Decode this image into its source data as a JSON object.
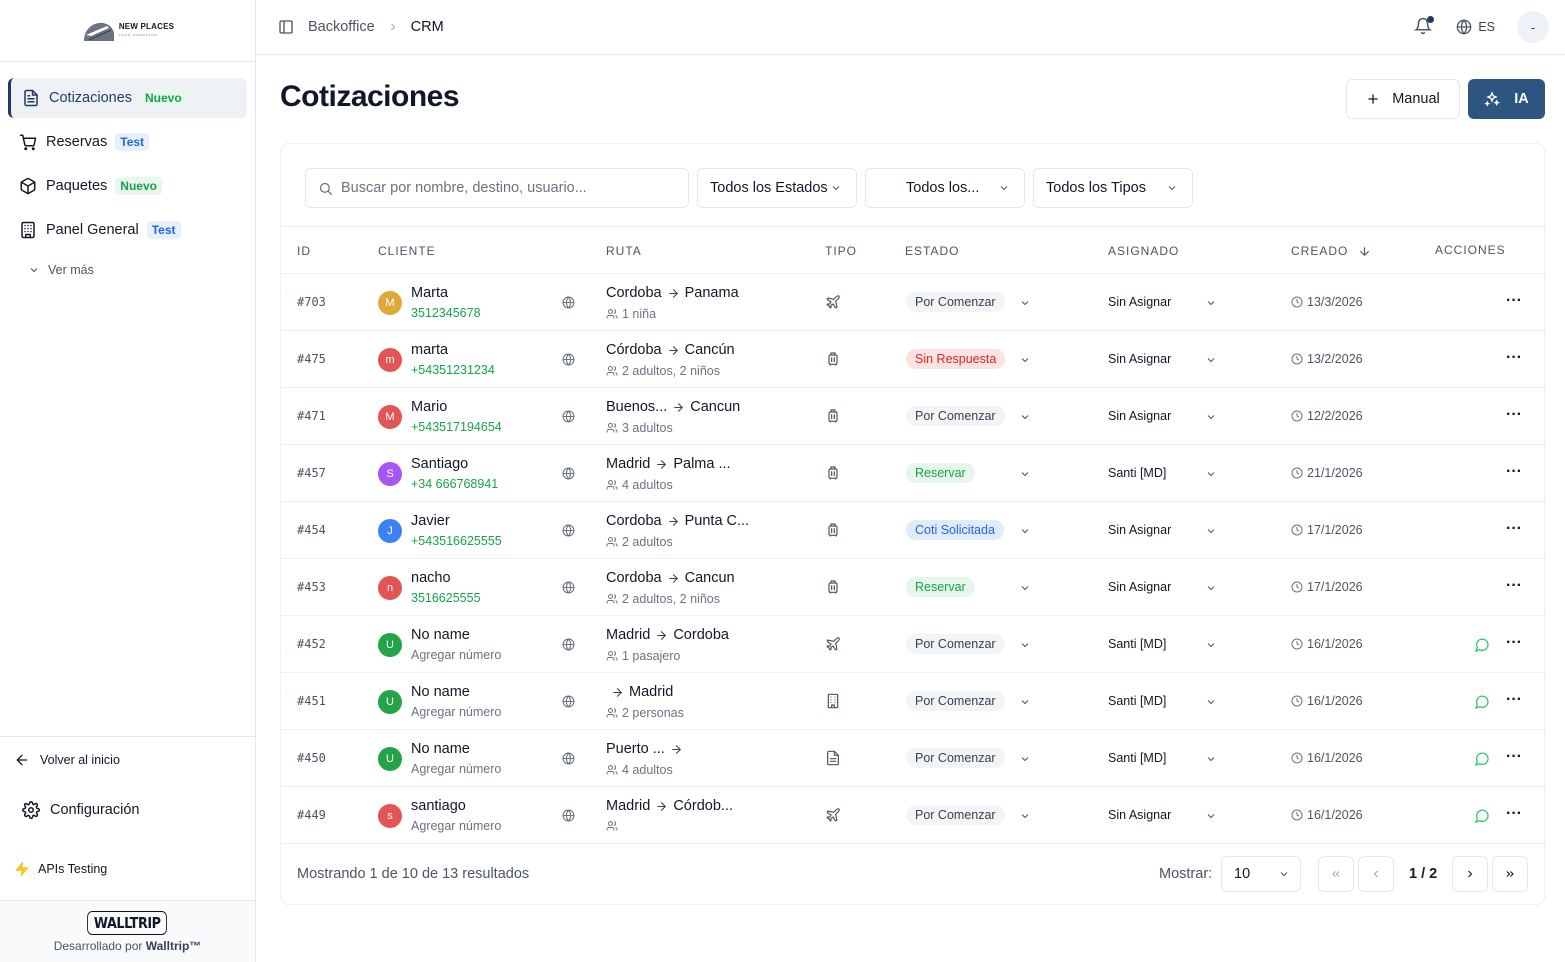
{
  "brand": {
    "name": "NEW PLACES",
    "tagline": "TOUR OPERATOR"
  },
  "sidebar": {
    "items": [
      {
        "label": "Cotizaciones",
        "badge": "Nuevo",
        "icon": "document-icon"
      },
      {
        "label": "Reservas",
        "badge": "Test",
        "icon": "cart-icon"
      },
      {
        "label": "Paquetes",
        "badge": "Nuevo",
        "icon": "package-icon"
      },
      {
        "label": "Panel General",
        "badge": "Test",
        "icon": "building-icon"
      }
    ],
    "ver_mas": "Ver más",
    "volver": "Volver al inicio",
    "config": "Configuración",
    "apis": "APIs Testing",
    "walltrip_logo": "WALLTRIP",
    "dev_prefix": "Desarrollado por ",
    "dev_name": "Walltrip™"
  },
  "header": {
    "crumb1": "Backoffice",
    "crumb2": "CRM",
    "lang": "ES",
    "avatar": "-"
  },
  "page": {
    "title": "Cotizaciones",
    "btn_manual": "Manual",
    "btn_ia": "IA"
  },
  "filters": {
    "search_placeholder": "Buscar por nombre, destino, usuario...",
    "estados": "Todos los Estados",
    "todos": "Todos los...",
    "tipos": "Todos los Tipos"
  },
  "table": {
    "headers": {
      "id": "ID",
      "cliente": "CLIENTE",
      "ruta": "RUTA",
      "tipo": "TIPO",
      "estado": "ESTADO",
      "asignado": "ASIGNADO",
      "creado": "CREADO",
      "acciones": "ACCIONES"
    },
    "rows": [
      {
        "id": "#703",
        "initial": "M",
        "color": "#e0a83a",
        "name": "Marta",
        "phone": "3512345678",
        "phone_green": true,
        "from": "Cordoba",
        "to": "Panama",
        "pax": "1 niña",
        "tipo": "plane",
        "estado": "Por Comenzar",
        "st": "gray",
        "asignado": "Sin Asignar",
        "fecha": "13/3/2026",
        "chat": false
      },
      {
        "id": "#475",
        "initial": "m",
        "color": "#e25555",
        "name": "marta",
        "phone": "+54351231234",
        "phone_green": true,
        "from": "Córdoba",
        "to": "Cancún",
        "pax": "2 adultos, 2 niños",
        "tipo": "luggage",
        "estado": "Sin Respuesta",
        "st": "red",
        "asignado": "Sin Asignar",
        "fecha": "13/2/2026",
        "chat": false
      },
      {
        "id": "#471",
        "initial": "M",
        "color": "#e25555",
        "name": "Mario",
        "phone": "+543517194654",
        "phone_green": true,
        "from": "Buenos...",
        "to": "Cancun",
        "pax": "3 adultos",
        "tipo": "luggage",
        "estado": "Por Comenzar",
        "st": "gray",
        "asignado": "Sin Asignar",
        "fecha": "12/2/2026",
        "chat": false
      },
      {
        "id": "#457",
        "initial": "S",
        "color": "#a855f7",
        "name": "Santiago",
        "phone": "+34 666768941",
        "phone_green": true,
        "from": "Madrid",
        "to": "Palma ...",
        "pax": "4 adultos",
        "tipo": "luggage",
        "estado": "Reservar",
        "st": "green",
        "asignado": "Santi [MD]",
        "fecha": "21/1/2026",
        "chat": false
      },
      {
        "id": "#454",
        "initial": "J",
        "color": "#3b82f6",
        "name": "Javier",
        "phone": "+543516625555",
        "phone_green": true,
        "from": "Cordoba",
        "to": "Punta C...",
        "pax": "2 adultos",
        "tipo": "luggage",
        "estado": "Coti Solicitada",
        "st": "blue",
        "asignado": "Sin Asignar",
        "fecha": "17/1/2026",
        "chat": false
      },
      {
        "id": "#453",
        "initial": "n",
        "color": "#e25555",
        "name": "nacho",
        "phone": "3516625555",
        "phone_green": true,
        "from": "Cordoba",
        "to": "Cancun",
        "pax": "2 adultos, 2 niños",
        "tipo": "luggage",
        "estado": "Reservar",
        "st": "green",
        "asignado": "Sin Asignar",
        "fecha": "17/1/2026",
        "chat": false
      },
      {
        "id": "#452",
        "initial": "U",
        "color": "#22a447",
        "name": "No name",
        "phone": "Agregar número",
        "phone_green": false,
        "from": "Madrid",
        "to": "Cordoba",
        "pax": "1 pasajero",
        "tipo": "plane",
        "estado": "Por Comenzar",
        "st": "gray",
        "asignado": "Santi [MD]",
        "fecha": "16/1/2026",
        "chat": true
      },
      {
        "id": "#451",
        "initial": "U",
        "color": "#22a447",
        "name": "No name",
        "phone": "Agregar número",
        "phone_green": false,
        "from": "",
        "to": "Madrid",
        "pax": "2 personas",
        "tipo": "hotel",
        "estado": "Por Comenzar",
        "st": "gray",
        "asignado": "Santi [MD]",
        "fecha": "16/1/2026",
        "chat": true
      },
      {
        "id": "#450",
        "initial": "U",
        "color": "#22a447",
        "name": "No name",
        "phone": "Agregar número",
        "phone_green": false,
        "from": "Puerto ...",
        "to": "",
        "pax": "4 adultos",
        "tipo": "doc",
        "estado": "Por Comenzar",
        "st": "gray",
        "asignado": "Santi [MD]",
        "fecha": "16/1/2026",
        "chat": true
      },
      {
        "id": "#449",
        "initial": "s",
        "color": "#e25555",
        "name": "santiago",
        "phone": "Agregar número",
        "phone_green": false,
        "from": "Madrid",
        "to": "Córdob...",
        "pax": "",
        "tipo": "plane",
        "estado": "Por Comenzar",
        "st": "gray",
        "asignado": "Sin Asignar",
        "fecha": "16/1/2026",
        "chat": true
      }
    ]
  },
  "footer": {
    "showing": "Mostrando 1 de 10 de 13 resultados",
    "mostrar": "Mostrar:",
    "per_page": "10",
    "page": "1 / 2"
  }
}
